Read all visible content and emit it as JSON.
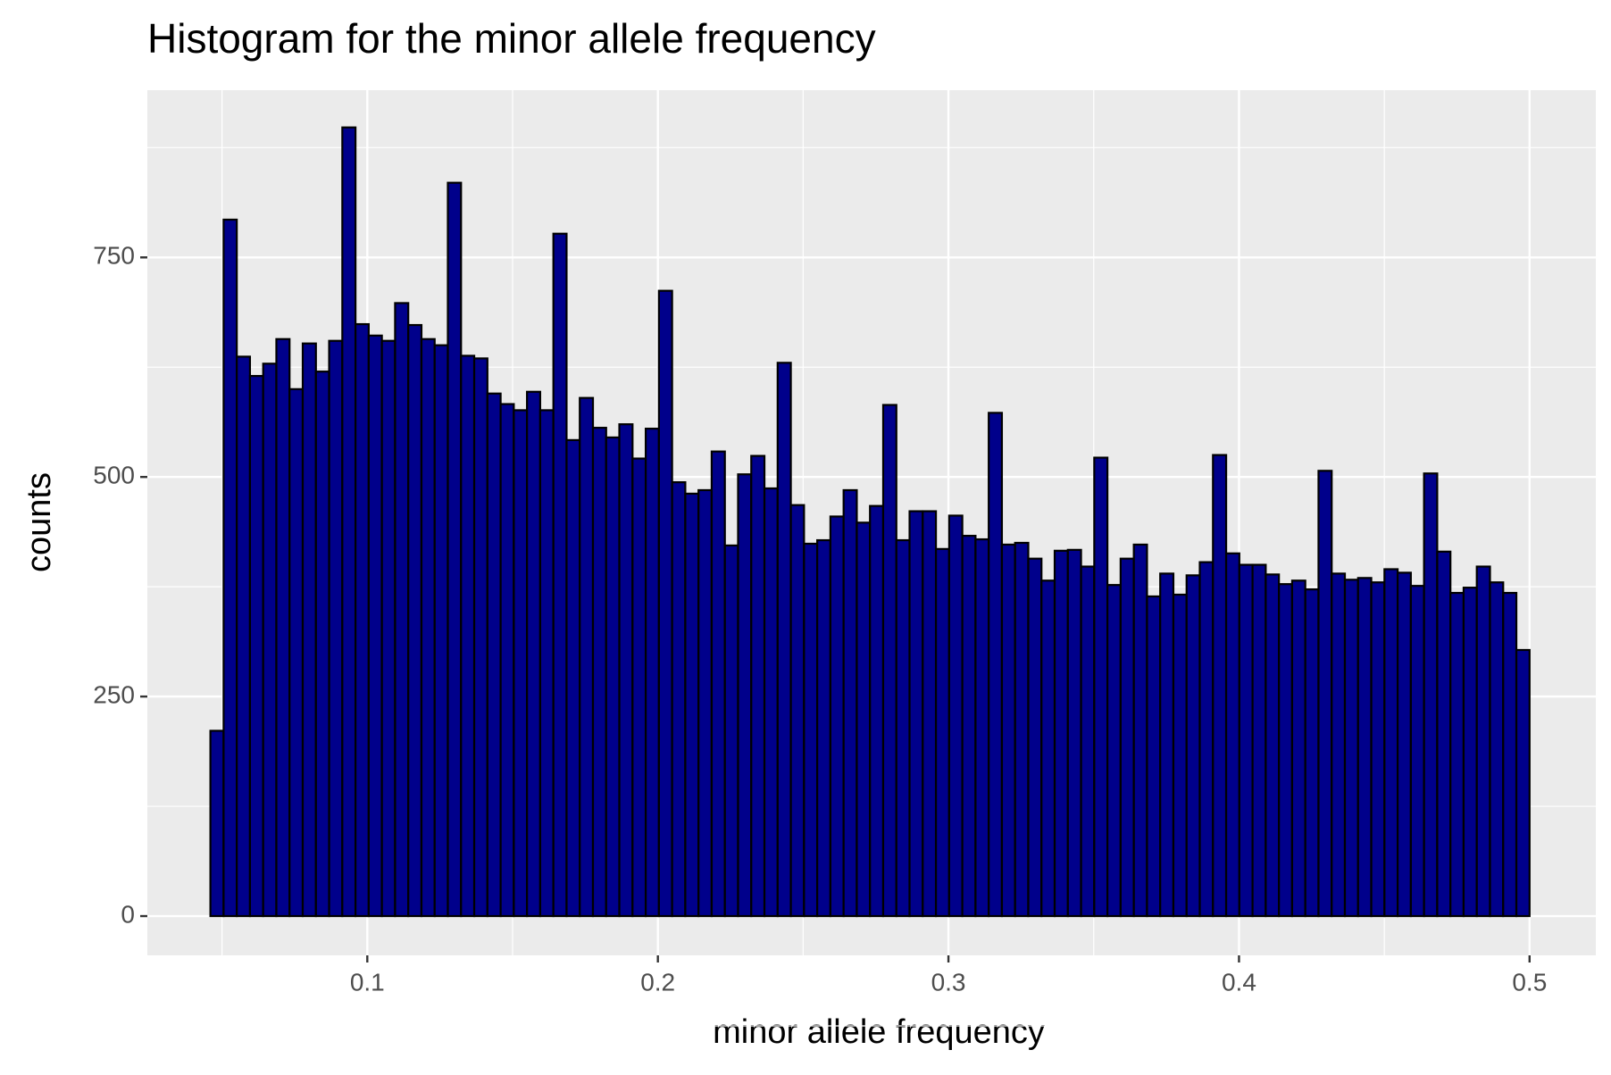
{
  "chart_data": {
    "type": "histogram",
    "title": "Histogram for the minor allele frequency",
    "x_label": "minor allele frequency",
    "y_label": "counts",
    "bins": [
      0.046,
      0.05054,
      0.05508,
      0.05962,
      0.06416,
      0.0687,
      0.07324,
      0.07778,
      0.08232,
      0.08686,
      0.0914,
      0.09594,
      0.10048,
      0.10502,
      0.10956,
      0.1141,
      0.11864,
      0.12318,
      0.12772,
      0.13226,
      0.1368,
      0.14134,
      0.14588,
      0.15042,
      0.15496,
      0.1595,
      0.16404,
      0.16858,
      0.17312,
      0.17766,
      0.1822,
      0.18674,
      0.19128,
      0.19582,
      0.20036,
      0.2049,
      0.20944,
      0.21398,
      0.21852,
      0.22306,
      0.2276,
      0.23214,
      0.23668,
      0.24122,
      0.24576,
      0.2503,
      0.25484,
      0.25938,
      0.26392,
      0.26846,
      0.273,
      0.27754,
      0.28208,
      0.28662,
      0.29116,
      0.2957,
      0.30024,
      0.30478,
      0.30932,
      0.31386,
      0.3184,
      0.32294,
      0.32748,
      0.33202,
      0.33656,
      0.3411,
      0.34564,
      0.35018,
      0.35472,
      0.35926,
      0.3638,
      0.36834,
      0.37288,
      0.37742,
      0.38196,
      0.3865,
      0.39104,
      0.39558,
      0.40012,
      0.40466,
      0.4092,
      0.41374,
      0.41828,
      0.42282,
      0.42736,
      0.4319,
      0.43644,
      0.44098,
      0.44552,
      0.45006,
      0.4546,
      0.45914,
      0.46368,
      0.46822,
      0.47276,
      0.4773,
      0.48184,
      0.48638,
      0.49092,
      0.49546,
      0.5
    ],
    "counts": [
      211,
      793,
      637,
      615,
      629,
      657,
      600,
      652,
      620,
      655,
      898,
      674,
      661,
      655,
      698,
      673,
      657,
      650,
      835,
      638,
      635,
      595,
      583,
      576,
      597,
      576,
      777,
      542,
      590,
      556,
      545,
      560,
      521,
      555,
      712,
      494,
      481,
      485,
      529,
      422,
      503,
      524,
      487,
      630,
      468,
      424,
      428,
      455,
      485,
      448,
      467,
      582,
      428,
      461,
      461,
      418,
      456,
      433,
      429,
      573,
      423,
      425,
      407,
      382,
      416,
      417,
      398,
      522,
      377,
      407,
      423,
      364,
      390,
      366,
      388,
      403,
      525,
      413,
      400,
      400,
      389,
      378,
      382,
      372,
      507,
      390,
      383,
      385,
      380,
      395,
      391,
      376,
      504,
      415,
      368,
      374,
      398,
      380,
      368,
      303
    ],
    "color": "#00008b",
    "edgecolor": "#000000",
    "xlim": [
      0.0243,
      0.5228
    ],
    "xticks": [
      0.1,
      0.2,
      0.3,
      0.4,
      0.5
    ],
    "ylim": [
      -44.7,
      940.4
    ],
    "yticks": [
      0,
      250,
      500,
      750
    ],
    "grid": true
  }
}
